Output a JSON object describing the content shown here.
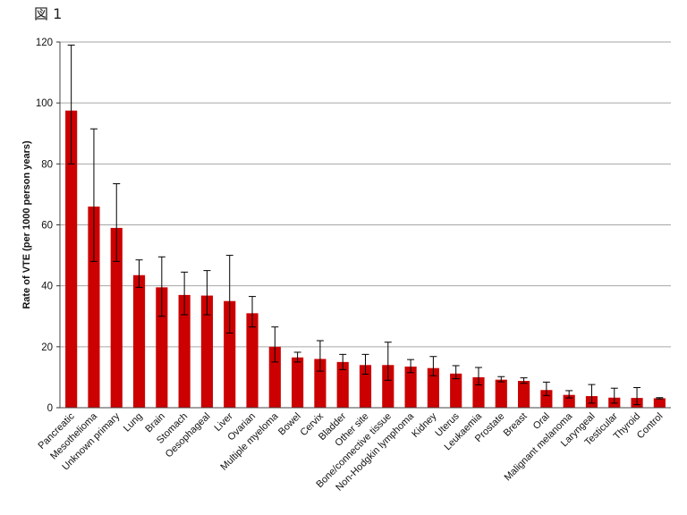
{
  "figure_label": "図 1",
  "chart_data": {
    "type": "bar",
    "title": "",
    "xlabel": "",
    "ylabel": "Rate of VTE (per 1000 person years)",
    "ylim": [
      0,
      120
    ],
    "yticks": [
      0,
      20,
      40,
      60,
      80,
      100,
      120
    ],
    "grid": true,
    "bar_color": "#cc0000",
    "error_bar_color": "#000000",
    "categories": [
      "Pancreatic",
      "Mesothelioma",
      "Unknown primary",
      "Lung",
      "Brain",
      "Stomach",
      "Oesophageal",
      "Liver",
      "Ovarian",
      "Multiple myeloma",
      "Bowel",
      "Cervix",
      "Bladder",
      "Other site",
      "Bone/connective tissue",
      "Non-Hodgkin lymphoma",
      "Kidney",
      "Uterus",
      "Leukaemia",
      "Prostate",
      "Breast",
      "Oral",
      "Malignant melanoma",
      "Laryngeal",
      "Testicular",
      "Thyroid",
      "Control"
    ],
    "values": [
      97.5,
      66,
      59,
      43.5,
      39.5,
      37,
      36.8,
      35,
      31,
      20,
      16.5,
      16,
      15,
      14,
      14,
      13.5,
      13,
      11.2,
      10,
      9.2,
      8.8,
      5.8,
      4.2,
      3.8,
      3.3,
      3.2,
      3.1
    ],
    "error_low": [
      80,
      48,
      48,
      39.5,
      30,
      30.5,
      30.5,
      24.5,
      26.5,
      15,
      15,
      12,
      12.5,
      11,
      9,
      11.5,
      10.5,
      9.5,
      7.5,
      8.5,
      8,
      4,
      3.2,
      1.5,
      1.5,
      1,
      2.9
    ],
    "error_high": [
      119,
      91.5,
      73.5,
      48.5,
      49.5,
      44.5,
      45,
      50,
      36.5,
      26.5,
      18.2,
      22,
      17.5,
      17.5,
      21.5,
      15.8,
      16.8,
      13.8,
      13.2,
      10.2,
      9.8,
      8.4,
      5.6,
      7.6,
      6.4,
      6.6,
      3.3
    ]
  }
}
